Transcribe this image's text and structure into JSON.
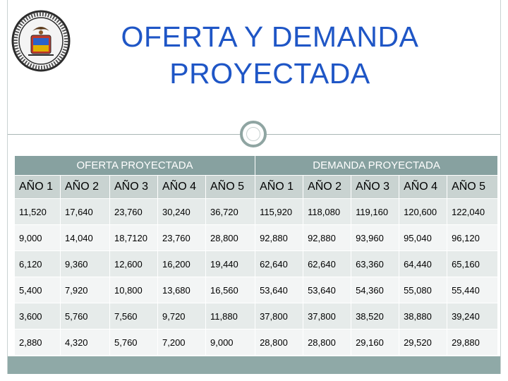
{
  "slide": {
    "title_line1": "OFERTA Y DEMANDA",
    "title_line2": "PROYECTADA",
    "logo_icon": "institution-seal-icon",
    "colors": {
      "title": "#1f56c6",
      "header_band": "#87a1a0",
      "year_band": "#c9d3d1",
      "row_odd": "#e6ebea",
      "row_even": "#f3f5f5",
      "bottom_bar": "#8fa9a7"
    }
  },
  "table": {
    "group_headers": [
      "OFERTA PROYECTADA",
      "DEMANDA PROYECTADA"
    ],
    "year_headers": [
      "AÑO 1",
      "AÑO 2",
      "AÑO 3",
      "AÑO 4",
      "AÑO 5",
      "AÑO 1",
      "AÑO 2",
      "AÑO 3",
      "AÑO 4",
      "AÑO 5"
    ],
    "rows": [
      [
        "11,520",
        "17,640",
        "23,760",
        "30,240",
        "36,720",
        "115,920",
        "118,080",
        "119,160",
        "120,600",
        "122,040"
      ],
      [
        "9,000",
        "14,040",
        "18,7120",
        "23,760",
        "28,800",
        "92,880",
        "92,880",
        "93,960",
        "95,040",
        "96,120"
      ],
      [
        "6,120",
        "9,360",
        "12,600",
        "16,200",
        "19,440",
        "62,640",
        "62,640",
        "63,360",
        "64,440",
        "65,160"
      ],
      [
        "5,400",
        "7,920",
        "10,800",
        "13,680",
        "16,560",
        "53,640",
        "53,640",
        "54,360",
        "55,080",
        "55,440"
      ],
      [
        "3,600",
        "5,760",
        "7,560",
        "9,720",
        "11,880",
        "37,800",
        "37,800",
        "38,520",
        "38,880",
        "39,240"
      ],
      [
        "2,880",
        "4,320",
        "5,760",
        "7,200",
        "9,000",
        "28,800",
        "28,800",
        "29,160",
        "29,520",
        "29,880"
      ]
    ]
  }
}
